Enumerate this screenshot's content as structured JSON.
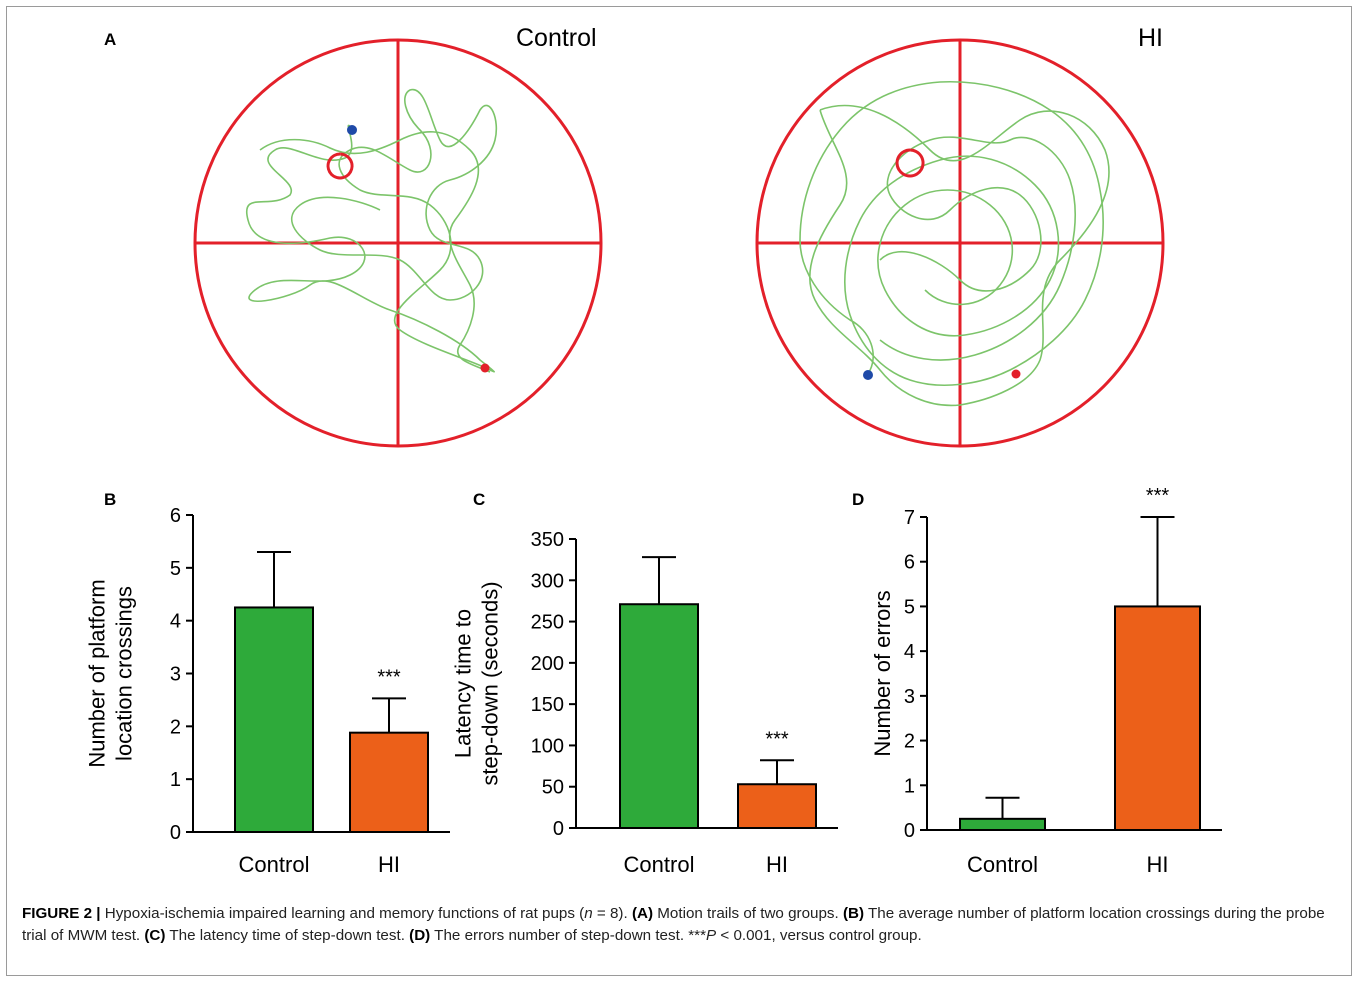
{
  "panel_a": {
    "letter": "A",
    "control_title": "Control",
    "hi_title": "HI"
  },
  "chart_data": [
    {
      "panel": "B",
      "type": "bar",
      "categories": [
        "Control",
        "HI"
      ],
      "values": [
        4.25,
        1.88
      ],
      "errors": [
        1.05,
        0.65
      ],
      "colors": [
        "#2eaa3a",
        "#ec6019"
      ],
      "significance": [
        "",
        "***"
      ],
      "ylabel_lines": [
        "Number of platform",
        "location crossings"
      ],
      "ylim": [
        0,
        6
      ],
      "yticks": [
        0,
        1,
        2,
        3,
        4,
        5,
        6
      ]
    },
    {
      "panel": "C",
      "type": "bar",
      "categories": [
        "Control",
        "HI"
      ],
      "values": [
        271,
        53
      ],
      "errors": [
        57,
        29
      ],
      "colors": [
        "#2eaa3a",
        "#ec6019"
      ],
      "significance": [
        "",
        "***"
      ],
      "ylabel_lines": [
        "Latency time to",
        "step-down (seconds)"
      ],
      "ylim": [
        0,
        350
      ],
      "yticks": [
        0,
        50,
        100,
        150,
        200,
        250,
        300,
        350
      ]
    },
    {
      "panel": "D",
      "type": "bar",
      "categories": [
        "Control",
        "HI"
      ],
      "values": [
        0.25,
        5.0
      ],
      "errors": [
        0.47,
        2.0
      ],
      "colors": [
        "#2eaa3a",
        "#ec6019"
      ],
      "significance": [
        "",
        "***"
      ],
      "ylabel_lines": [
        "Number of errors"
      ],
      "ylim": [
        0,
        7
      ],
      "yticks": [
        0,
        1,
        2,
        3,
        4,
        5,
        6,
        7
      ]
    }
  ],
  "caption": {
    "label": "FIGURE 2 |",
    "text1": "Hypoxia-ischemia impaired learning and memory functions of rat pups (",
    "n_italic": "n",
    "text2": " = 8). ",
    "a_label": "(A)",
    "a_text": " Motion trails of two groups. ",
    "b_label": "(B)",
    "b_text": " The average number of platform location crossings during the probe trial of MWM test. ",
    "c_label": "(C)",
    "c_text": " The latency time of step-down test. ",
    "d_label": "(D)",
    "d_text": " The errors number of step-down test. ***",
    "p_italic": "P",
    "p_text": " < 0.001, versus control group."
  },
  "colors": {
    "pool_red": "#e3202a",
    "trail_green": "#7cc46a",
    "start_blue": "#1f4aa8",
    "end_red": "#e3202a"
  }
}
